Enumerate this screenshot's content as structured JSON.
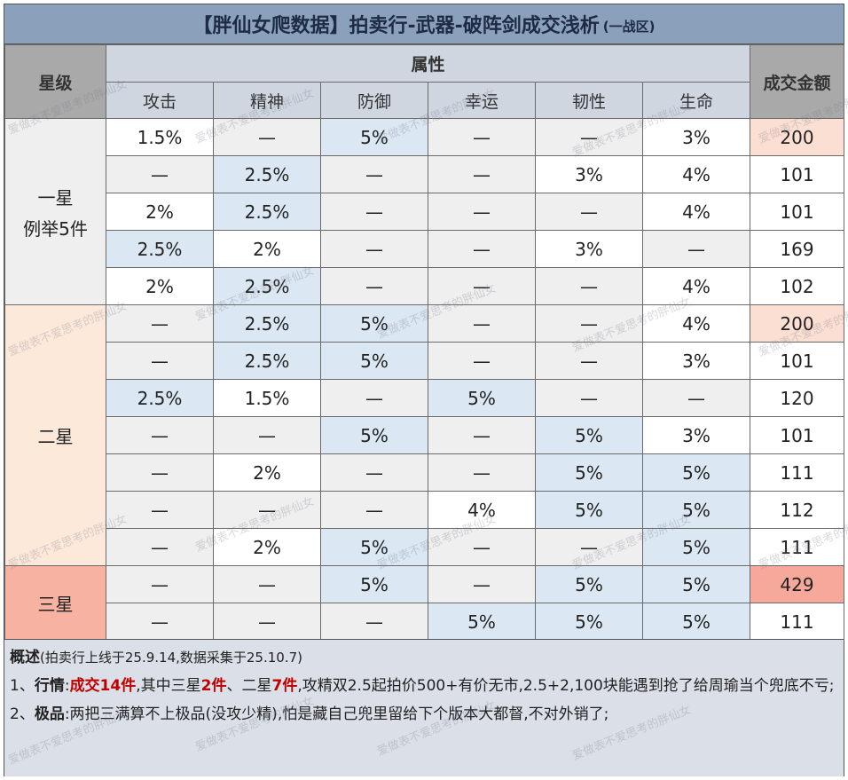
{
  "title": {
    "main": "【胖仙女爬数据】拍卖行-武器-破阵剑成交浅析",
    "sub": "(一战区)"
  },
  "headers": {
    "star": "星级",
    "attributes": "属性",
    "price": "成交金额",
    "cols": [
      "攻击",
      "精神",
      "防御",
      "幸运",
      "韧性",
      "生命"
    ]
  },
  "groups": [
    {
      "label_line1": "一星",
      "label_line2": "例举5件"
    },
    {
      "label_line1": "二星",
      "label_line2": ""
    },
    {
      "label_line1": "三星",
      "label_line2": ""
    }
  ],
  "rows": [
    {
      "cells": [
        "1.5%",
        "—",
        "5%",
        "—",
        "—",
        "3%"
      ],
      "price": "200"
    },
    {
      "cells": [
        "—",
        "2.5%",
        "—",
        "—",
        "3%",
        "4%"
      ],
      "price": "101"
    },
    {
      "cells": [
        "2%",
        "2.5%",
        "—",
        "—",
        "—",
        "4%"
      ],
      "price": "101"
    },
    {
      "cells": [
        "2.5%",
        "2%",
        "—",
        "—",
        "3%",
        "—"
      ],
      "price": "169"
    },
    {
      "cells": [
        "2%",
        "2.5%",
        "—",
        "—",
        "—",
        "4%"
      ],
      "price": "102"
    },
    {
      "cells": [
        "—",
        "2.5%",
        "5%",
        "—",
        "—",
        "4%"
      ],
      "price": "200"
    },
    {
      "cells": [
        "—",
        "2.5%",
        "5%",
        "—",
        "—",
        "3%"
      ],
      "price": "101"
    },
    {
      "cells": [
        "2.5%",
        "1.5%",
        "—",
        "5%",
        "—",
        "—"
      ],
      "price": "120"
    },
    {
      "cells": [
        "—",
        "—",
        "5%",
        "—",
        "5%",
        "3%"
      ],
      "price": "101"
    },
    {
      "cells": [
        "—",
        "2%",
        "—",
        "—",
        "5%",
        "5%"
      ],
      "price": "111"
    },
    {
      "cells": [
        "—",
        "—",
        "—",
        "4%",
        "5%",
        "5%"
      ],
      "price": "112"
    },
    {
      "cells": [
        "—",
        "2%",
        "5%",
        "—",
        "—",
        "5%"
      ],
      "price": "111"
    },
    {
      "cells": [
        "—",
        "—",
        "5%",
        "—",
        "5%",
        "5%"
      ],
      "price": "429"
    },
    {
      "cells": [
        "—",
        "—",
        "—",
        "5%",
        "5%",
        "5%"
      ],
      "price": "111"
    }
  ],
  "notes": {
    "summary_label": "概述",
    "summary_detail": "(拍卖行上线于25.9.14,数据采集于25.10.7)",
    "l1_prefix": "1、",
    "l1_label": "行情",
    "l1_colon": ":",
    "l1_deal": "成交14件",
    "l1_t1": ",其中三星",
    "l1_n3": "2件",
    "l1_t2": "、二星",
    "l1_n2": "7件",
    "l1_t3": ",攻精双2.5起拍价500+有价无市,2.5+2,100块能遇到抢了给周瑜当个兜底不亏;",
    "l2_prefix": "2、",
    "l2_label": "极品",
    "l2_text": ":两把三满算不上极品(没攻少精),怕是藏自己兜里留给下个版本大都督,不对外销了;"
  },
  "watermark": "爱做表不爱思考的胖仙女"
}
